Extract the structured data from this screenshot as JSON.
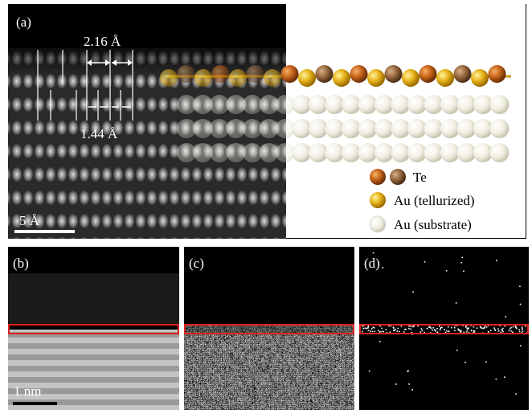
{
  "panels": {
    "a": {
      "label": "(a)",
      "spacing_top": "2.16 Å",
      "spacing_bottom": "1.44 Å",
      "scale_bar": "5 Å",
      "legend": [
        "Te",
        "Au (tellurized)",
        "Au (substrate)"
      ]
    },
    "b": {
      "label": "(b)",
      "scale_bar": "1 nm"
    },
    "c": {
      "label": "(c)"
    },
    "d": {
      "label": "(d)"
    }
  }
}
